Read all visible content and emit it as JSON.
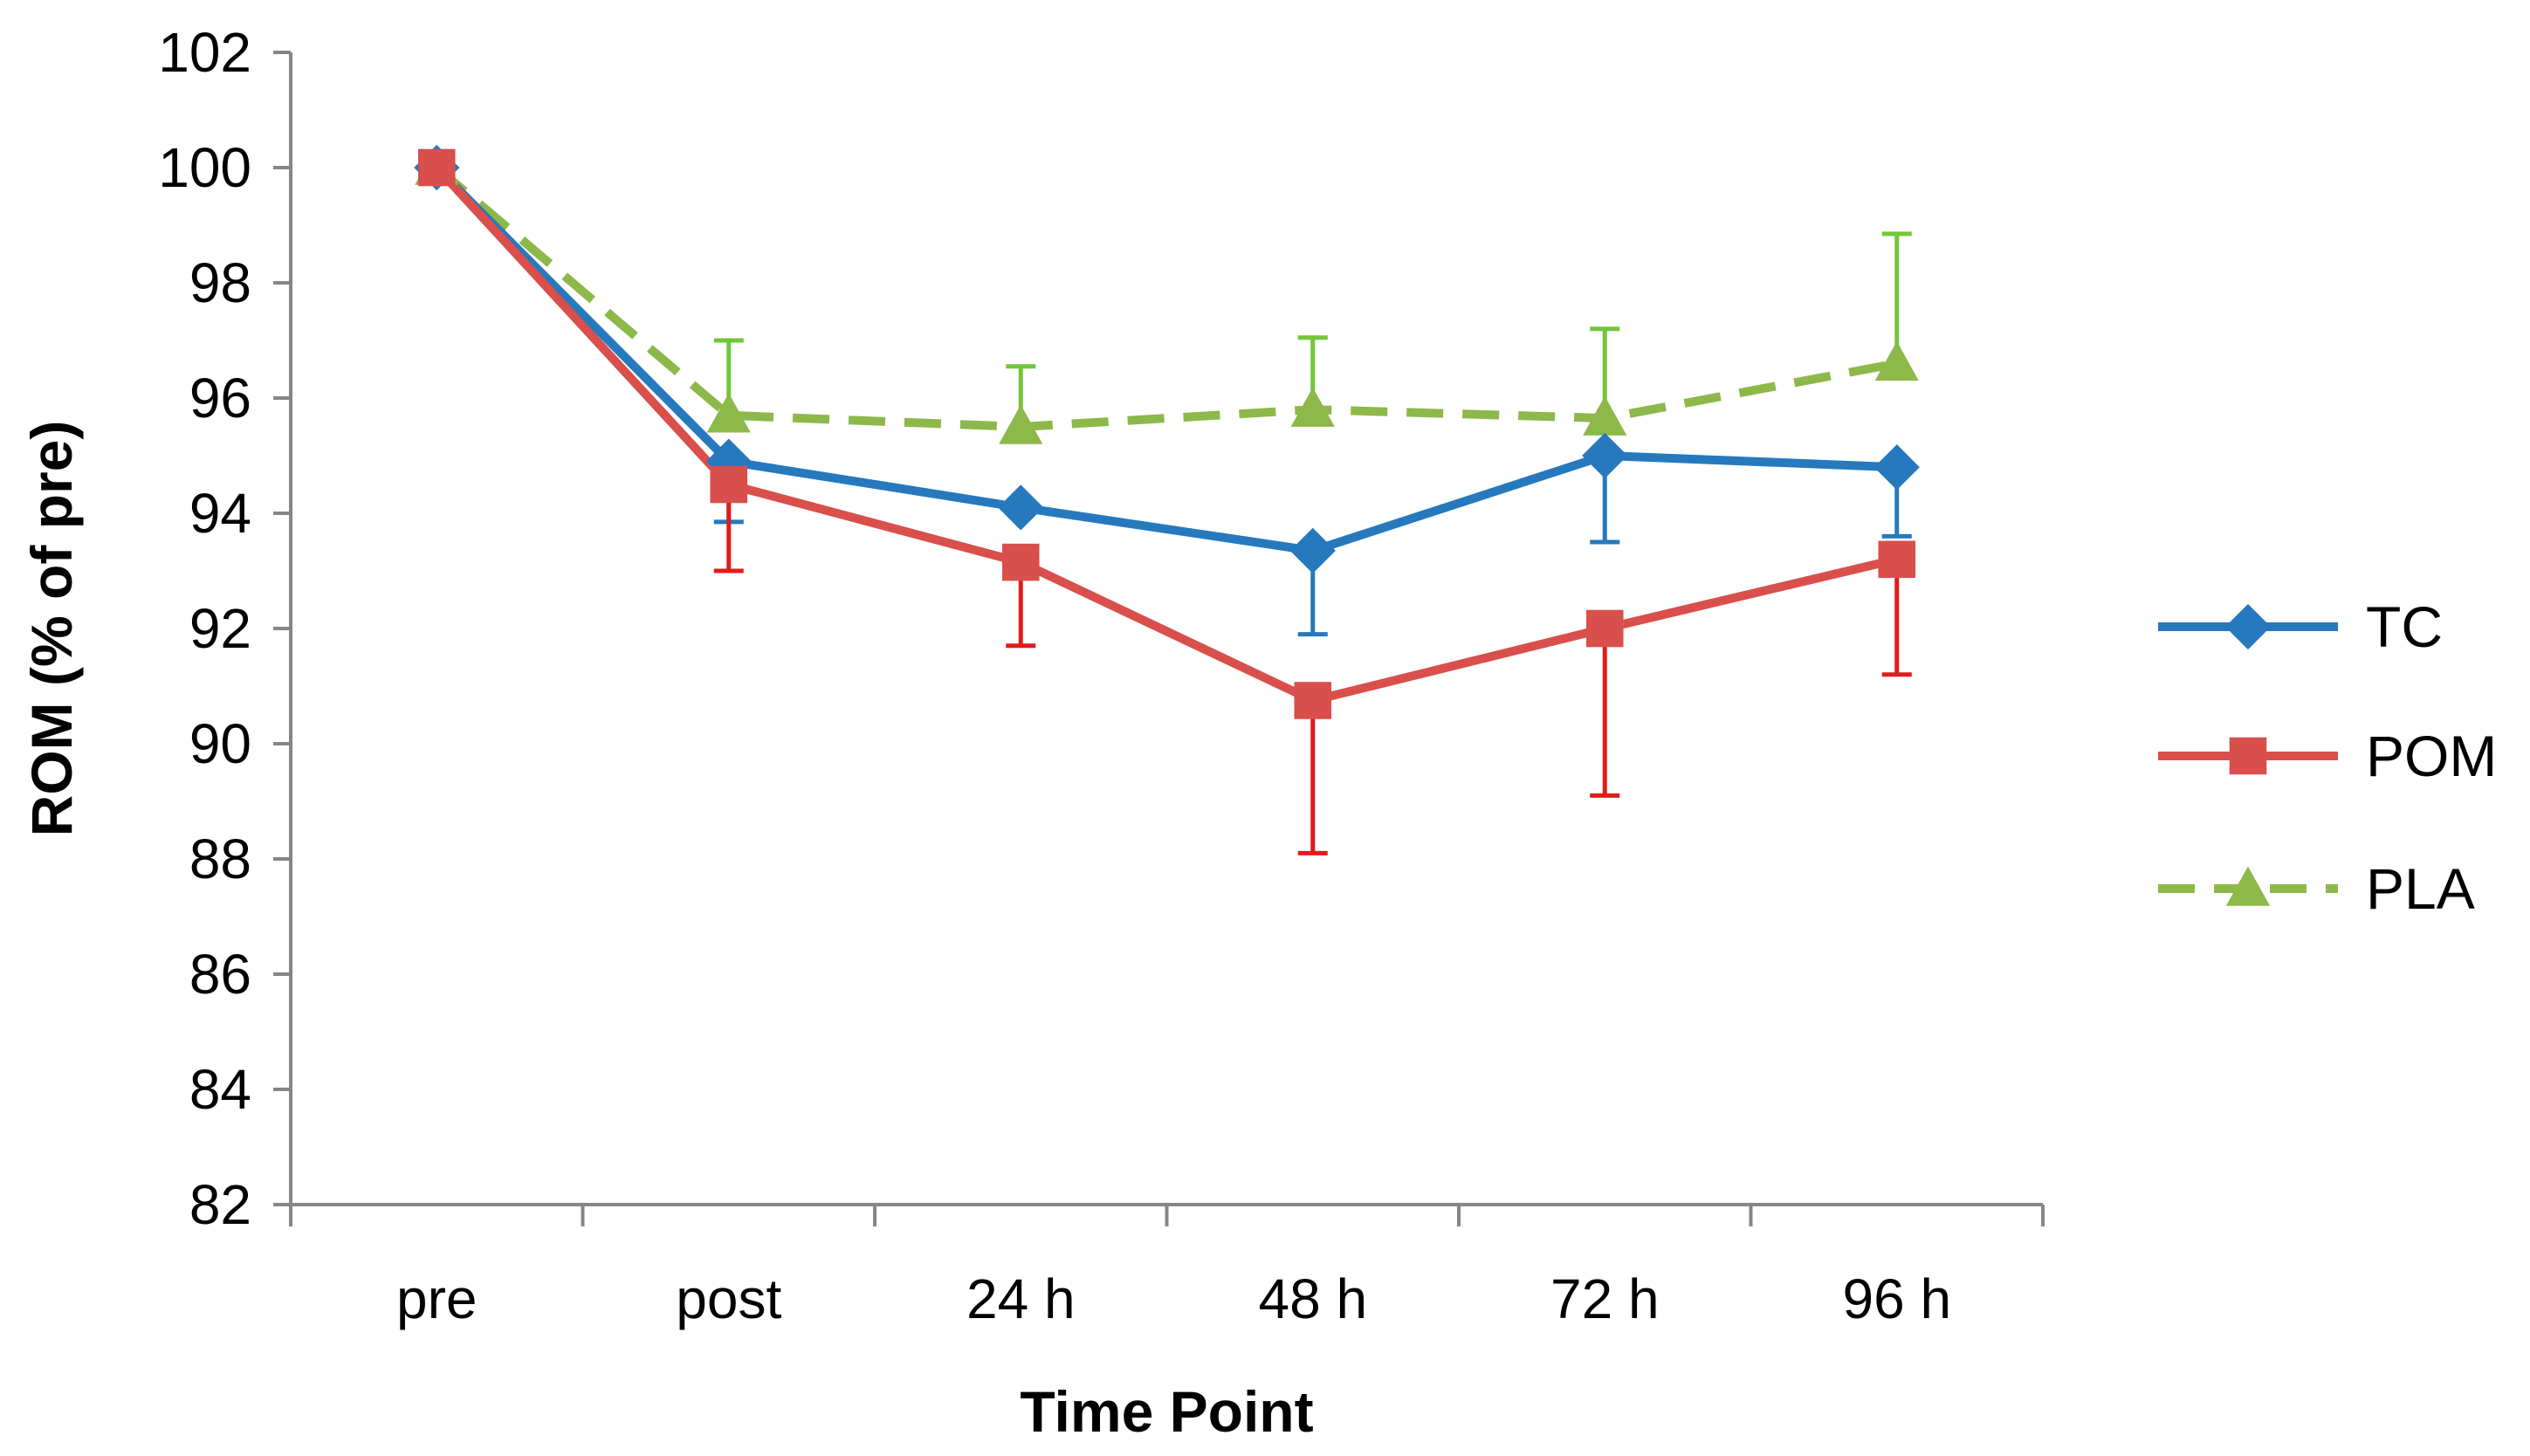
{
  "chart_data": {
    "type": "line",
    "title": "",
    "xlabel": "Time Point",
    "ylabel": "ROM (% of pre)",
    "categories": [
      "pre",
      "post",
      "24 h",
      "48 h",
      "72 h",
      "96 h"
    ],
    "ylim": [
      82,
      102
    ],
    "ytick_step": 2,
    "legend_position": "right",
    "grid": false,
    "series": [
      {
        "name": "TC",
        "color": "#2679BD",
        "marker": "diamond",
        "line_style": "solid",
        "values": [
          100,
          94.9,
          94.1,
          93.35,
          95.0,
          94.8
        ],
        "error_plus": [
          0,
          0,
          0,
          0,
          0,
          0
        ],
        "error_minus": [
          0,
          1.05,
          0,
          1.45,
          1.5,
          1.2
        ]
      },
      {
        "name": "POM",
        "color": "#D94F4B",
        "error_color": "#E01B1B",
        "marker": "square",
        "line_style": "solid",
        "values": [
          100,
          94.5,
          93.15,
          90.75,
          92.0,
          93.2
        ],
        "error_plus": [
          0,
          0,
          0,
          0,
          0,
          0
        ],
        "error_minus": [
          0,
          1.5,
          1.45,
          2.65,
          2.9,
          2.0
        ]
      },
      {
        "name": "PLA",
        "color": "#8DB84A",
        "error_color": "#72C63A",
        "marker": "triangle",
        "line_style": "dashed",
        "values": [
          100,
          95.7,
          95.5,
          95.8,
          95.65,
          96.6
        ],
        "error_plus": [
          0,
          1.3,
          1.05,
          1.25,
          1.55,
          2.25
        ],
        "error_minus": [
          0,
          0,
          0,
          0,
          0,
          0
        ]
      }
    ]
  }
}
